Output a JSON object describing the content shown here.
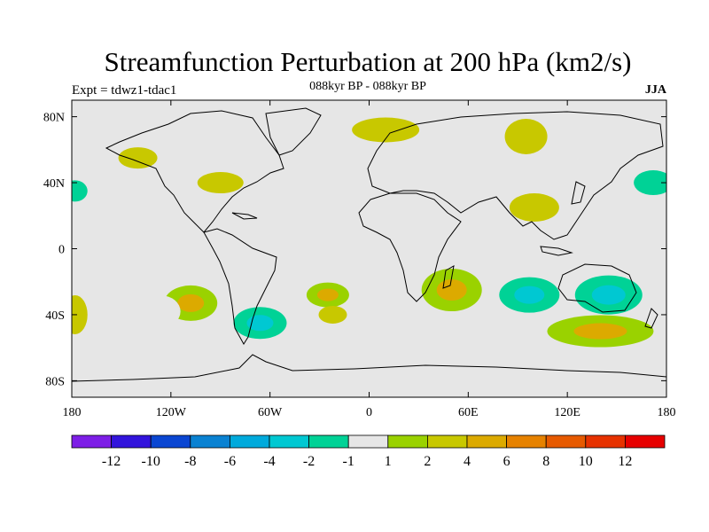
{
  "title": "Streamfunction Perturbation at 200 hPa (km2/s)",
  "subtitle": "088kyr BP - 088kyr BP",
  "left_label": "Expt = tdwz1-tdac1",
  "right_label": "JJA",
  "map": {
    "lat_ticks": [
      {
        "value": 80,
        "label": "80N"
      },
      {
        "value": 40,
        "label": "40N"
      },
      {
        "value": 0,
        "label": "0"
      },
      {
        "value": -40,
        "label": "40S"
      },
      {
        "value": -80,
        "label": "80S"
      }
    ],
    "lon_ticks": [
      {
        "value": -180,
        "label": "180"
      },
      {
        "value": -120,
        "label": "120W"
      },
      {
        "value": -60,
        "label": "60W"
      },
      {
        "value": 0,
        "label": "0"
      },
      {
        "value": 60,
        "label": "60E"
      },
      {
        "value": 120,
        "label": "120E"
      },
      {
        "value": 180,
        "label": "180"
      }
    ],
    "background_color": "#e6e6e6"
  },
  "colorbar": {
    "colors": [
      "#7d1ee6",
      "#3214dc",
      "#0a46d2",
      "#0a82d2",
      "#00aadc",
      "#00c8d2",
      "#00d296",
      "#e6e6e6",
      "#9ad200",
      "#c8c800",
      "#dcaa00",
      "#e68200",
      "#e65a00",
      "#e63200",
      "#e60000"
    ],
    "labels": [
      "-12",
      "-10",
      "-8",
      "-6",
      "-4",
      "-2",
      "-1",
      "1",
      "2",
      "4",
      "6",
      "8",
      "10",
      "12"
    ]
  },
  "chart_data": {
    "type": "heatmap",
    "title": "Streamfunction Perturbation at 200 hPa (km2/s)",
    "x_range": [
      -180,
      180
    ],
    "y_range": [
      -90,
      90
    ],
    "levels": [
      -12,
      -10,
      -8,
      -6,
      -4,
      -2,
      -1,
      1,
      2,
      4,
      6,
      8,
      10,
      12
    ],
    "anomaly_regions": [
      {
        "lon": -108,
        "lat": -33,
        "value": 4
      },
      {
        "lon": -126,
        "lat": -38,
        "value": -1
      },
      {
        "lon": -66,
        "lat": -45,
        "value": -4
      },
      {
        "lon": -25,
        "lat": -28,
        "value": 4
      },
      {
        "lon": -75,
        "lat": -8,
        "value": -1
      },
      {
        "lon": -90,
        "lat": 40,
        "value": 2
      },
      {
        "lon": -40,
        "lat": 50,
        "value": -1
      },
      {
        "lon": -140,
        "lat": 55,
        "value": 2
      },
      {
        "lon": -70,
        "lat": 70,
        "value": -1
      },
      {
        "lon": 10,
        "lat": 72,
        "value": 2
      },
      {
        "lon": 95,
        "lat": 68,
        "value": 2
      },
      {
        "lon": 172,
        "lat": 40,
        "value": -2
      },
      {
        "lon": -178,
        "lat": 35,
        "value": -2
      },
      {
        "lon": 100,
        "lat": 25,
        "value": 2
      },
      {
        "lon": 128,
        "lat": 20,
        "value": -1
      },
      {
        "lon": 50,
        "lat": -25,
        "value": 4
      },
      {
        "lon": 97,
        "lat": -28,
        "value": -4
      },
      {
        "lon": 145,
        "lat": -28,
        "value": -4
      },
      {
        "lon": 140,
        "lat": -50,
        "value": 4
      },
      {
        "lon": -178,
        "lat": -40,
        "value": 2
      },
      {
        "lon": -120,
        "lat": -75,
        "value": -1
      },
      {
        "lon": 105,
        "lat": -75,
        "value": -1
      },
      {
        "lon": -22,
        "lat": -40,
        "value": 2
      }
    ]
  }
}
